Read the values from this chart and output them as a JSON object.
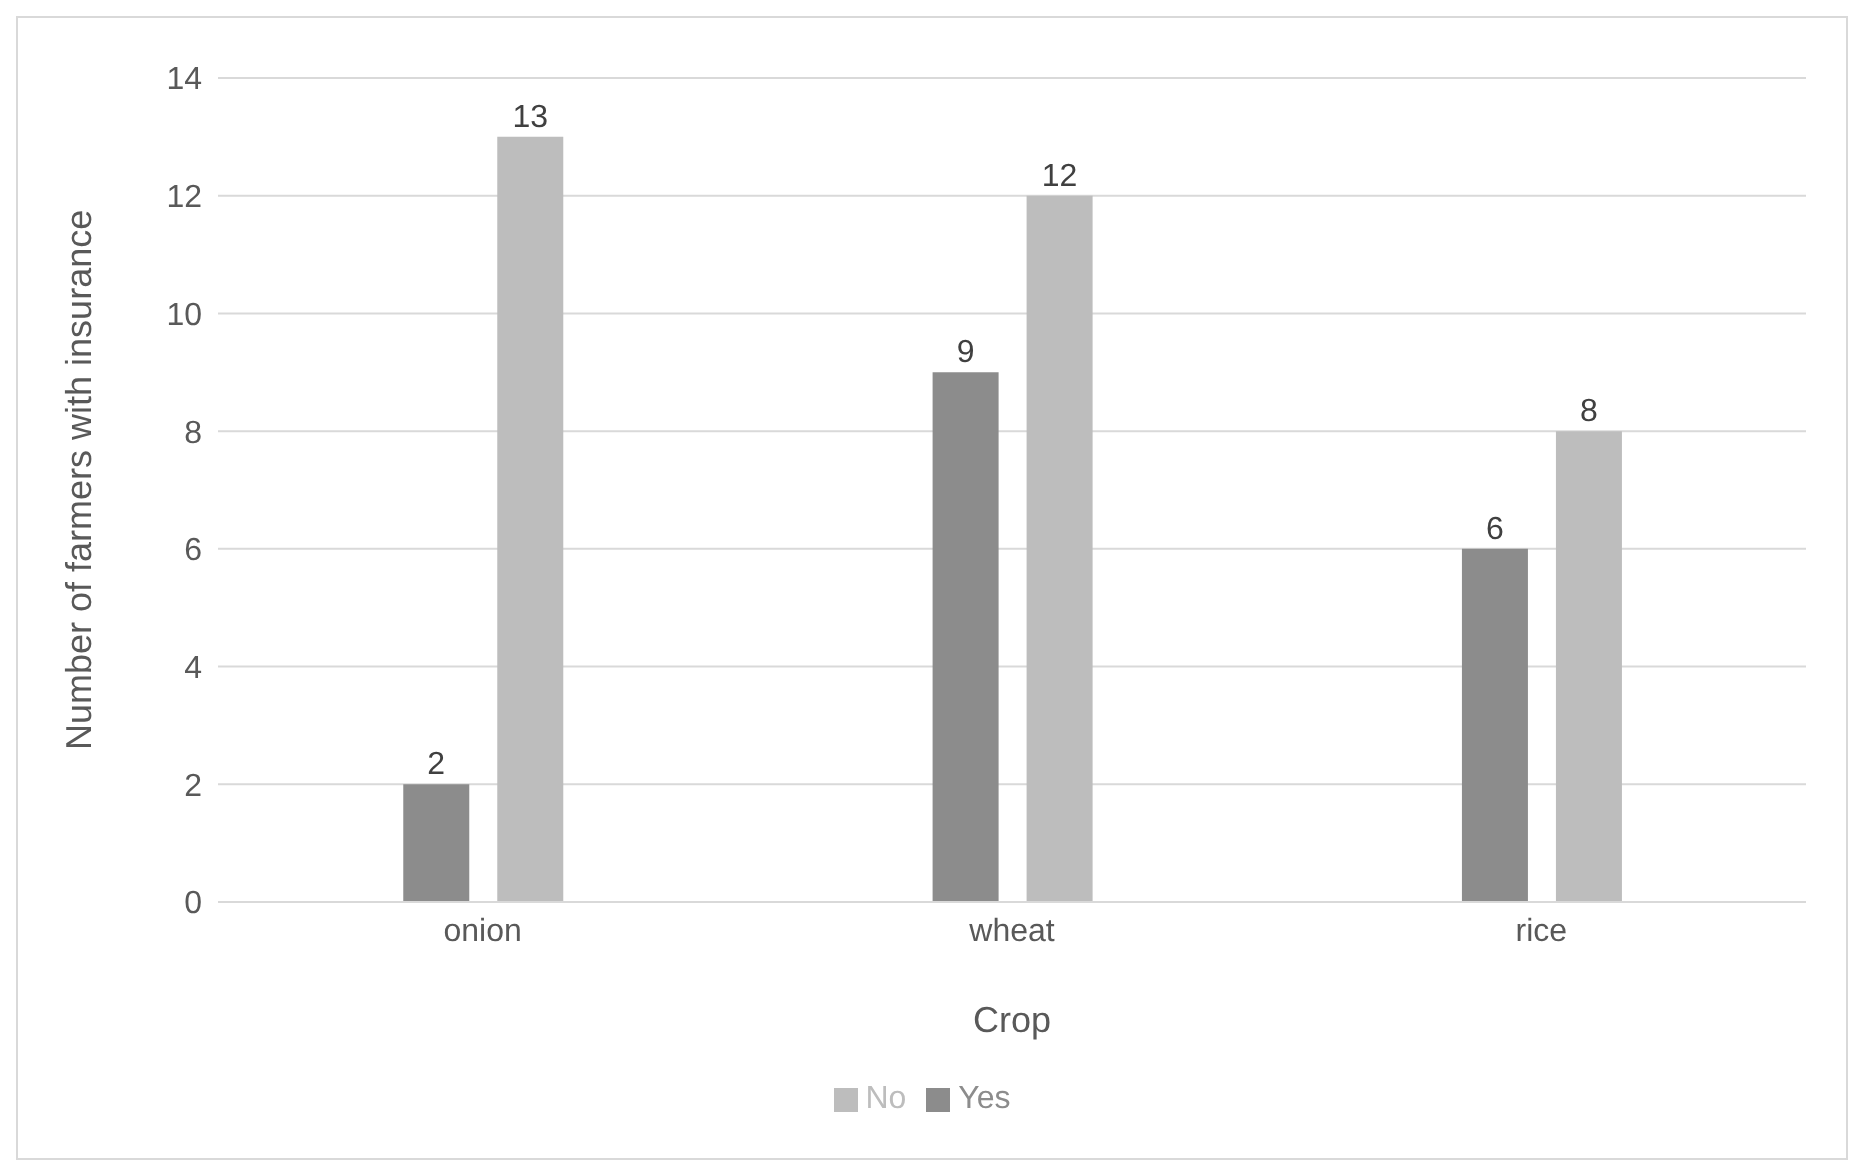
{
  "chart_data": {
    "type": "bar",
    "xlabel": "Crop",
    "ylabel": "Number of farmers with insurance",
    "categories": [
      "onion",
      "wheat",
      "rice"
    ],
    "series": [
      {
        "name": "Yes",
        "color": "#8c8c8c",
        "values": [
          2,
          9,
          6
        ]
      },
      {
        "name": "No",
        "color": "#bdbdbd",
        "values": [
          13,
          12,
          8
        ]
      }
    ],
    "ylim": [
      0,
      14
    ],
    "yticks": [
      0,
      2,
      4,
      6,
      8,
      10,
      12,
      14
    ],
    "grid": "y",
    "legend": "bottom",
    "data_labels": true
  }
}
